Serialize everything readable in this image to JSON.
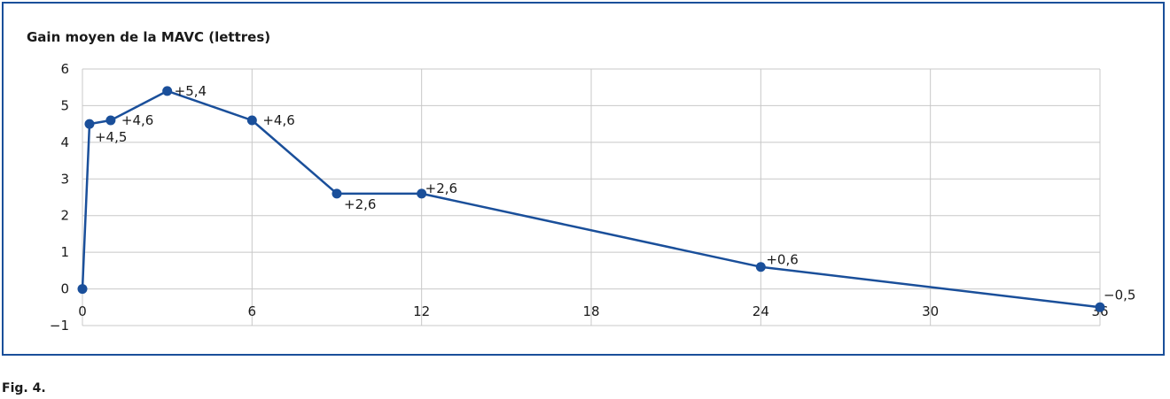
{
  "chart_data": {
    "type": "line",
    "title": "Gain moyen de la MAVC (lettres)",
    "xlabel": "",
    "ylabel": "",
    "xlim": [
      0,
      36
    ],
    "ylim": [
      -1,
      6
    ],
    "xticks": [
      "0",
      "6",
      "12",
      "18",
      "24",
      "30",
      "36"
    ],
    "yticks": [
      "6",
      "5",
      "4",
      "3",
      "2",
      "1",
      "0",
      "−1"
    ],
    "grid": true,
    "series": [
      {
        "color": "#1a4f9a",
        "points": [
          {
            "x": 0,
            "y": 0
          },
          {
            "x": 0.25,
            "y": 4.5,
            "label": "+4,5"
          },
          {
            "x": 1,
            "y": 4.6,
            "label": "+4,6"
          },
          {
            "x": 3,
            "y": 5.4,
            "label": "+5,4"
          },
          {
            "x": 6,
            "y": 4.6,
            "label": "+4,6"
          },
          {
            "x": 9,
            "y": 2.6,
            "label": "+2,6"
          },
          {
            "x": 12,
            "y": 2.6,
            "label": "+2,6"
          },
          {
            "x": 24,
            "y": 0.6,
            "label": "+0,6"
          },
          {
            "x": 36,
            "y": -0.5,
            "label": "−0,5"
          }
        ]
      }
    ]
  },
  "caption": "Fig. 4."
}
